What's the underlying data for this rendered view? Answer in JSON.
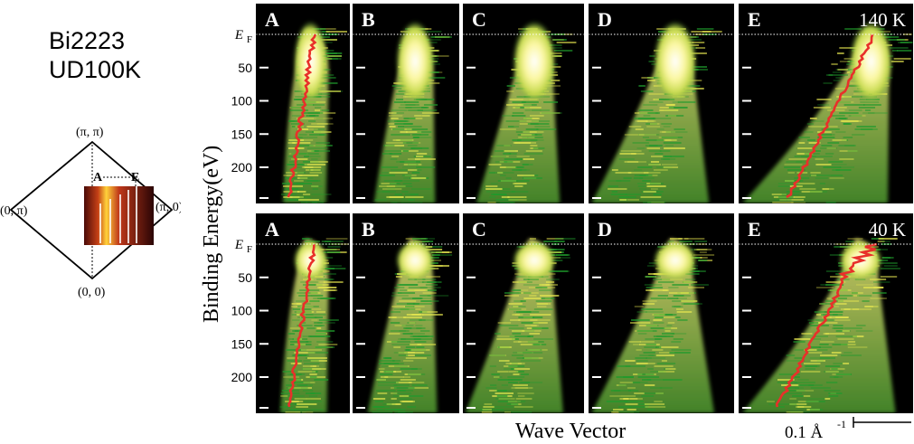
{
  "sample": {
    "name": "Bi2223",
    "doping": "UD100K",
    "bz_labels": {
      "top": "(π, π)",
      "left": "(0, π)",
      "right": "(π, 0)",
      "bottom": "(0, 0)"
    },
    "cut_start_label": "A",
    "cut_end_label": "E"
  },
  "axes": {
    "ylabel": "Binding Energy(eV)",
    "xlabel": "Wave Vector",
    "scalebar_label": "0.1 Å",
    "scalebar_exp": "-1",
    "fermi_label": "E",
    "fermi_sub": "F",
    "yticks": [
      "50",
      "100",
      "150",
      "200"
    ]
  },
  "rows": [
    {
      "temperature": "140 K",
      "panels": [
        "A",
        "B",
        "C",
        "D",
        "E"
      ]
    },
    {
      "temperature": "40 K",
      "panels": [
        "A",
        "B",
        "C",
        "D",
        "E"
      ]
    }
  ],
  "colors": {
    "background": "#000000",
    "green": "#1f9a2c",
    "yellow": "#e8e850",
    "white": "#ffffff",
    "dispersion": "#e8302a"
  }
}
